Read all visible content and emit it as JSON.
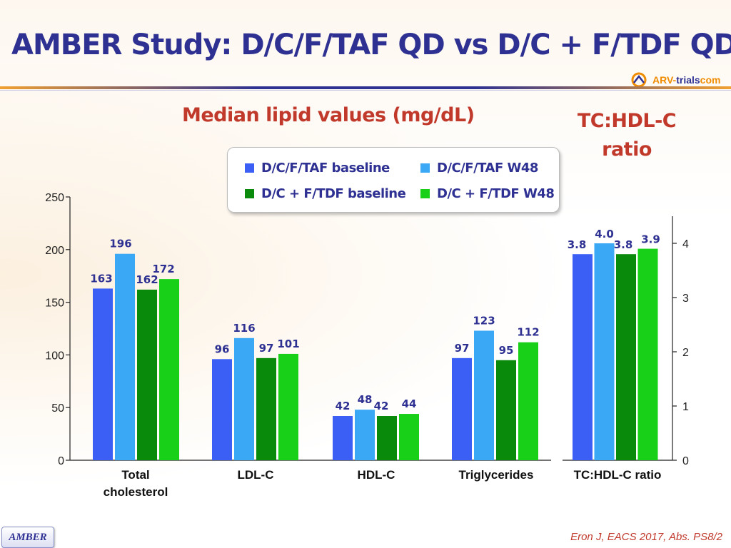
{
  "slide": {
    "title": "AMBER Study: D/C/F/TAF QD vs D/C + F/TDF QD",
    "logo_arv": "ARV-",
    "logo_trials": "trials",
    "logo_com": "com",
    "citation": "Eron J, EACS 2017, Abs. PS8/2",
    "badge": "AMBER"
  },
  "colors": {
    "dcftaf_baseline": "#3b5ef5",
    "dcftaf_w48": "#3ba8f5",
    "dcftdf_baseline": "#0a8a0a",
    "dcftdf_w48": "#18d018",
    "title": "#2e3192",
    "accent": "#c0392b"
  },
  "chart_data": [
    {
      "type": "bar",
      "title": "Median lipid values (mg/dL)",
      "categories": [
        "Total\ncholesterol",
        "LDL-C",
        "HDL-C",
        "Triglycerides"
      ],
      "series": [
        {
          "name": "D/C/F/TAF baseline",
          "values": [
            163,
            96,
            42,
            97
          ]
        },
        {
          "name": "D/C/F/TAF W48",
          "values": [
            196,
            116,
            48,
            123
          ]
        },
        {
          "name": "D/C + F/TDF baseline",
          "values": [
            162,
            97,
            42,
            95
          ]
        },
        {
          "name": "D/C + F/TDF W48",
          "values": [
            172,
            101,
            44,
            112
          ]
        }
      ],
      "value_labels": [
        [
          "163",
          "96",
          "42",
          "97"
        ],
        [
          "196",
          "116",
          "48",
          "123"
        ],
        [
          "162",
          "97",
          "42",
          "95"
        ],
        [
          "172",
          "101",
          "44",
          "112"
        ]
      ],
      "ylim": [
        0,
        250
      ],
      "yticks": [
        0,
        50,
        100,
        150,
        200,
        250
      ],
      "ytick_labels": [
        "0",
        "50",
        "100",
        "150",
        "200",
        "250"
      ],
      "xlabel": "",
      "ylabel": "",
      "legend": "top-center"
    },
    {
      "type": "bar",
      "title": "TC:HDL-C ratio",
      "categories": [
        "TC:HDL-C ratio"
      ],
      "series": [
        {
          "name": "D/C/F/TAF baseline",
          "values": [
            3.8
          ]
        },
        {
          "name": "D/C/F/TAF W48",
          "values": [
            4.0
          ]
        },
        {
          "name": "D/C + F/TDF baseline",
          "values": [
            3.8
          ]
        },
        {
          "name": "D/C + F/TDF W48",
          "values": [
            3.9
          ]
        }
      ],
      "value_labels": [
        [
          "3.8"
        ],
        [
          "4.0"
        ],
        [
          "3.8"
        ],
        [
          "3.9"
        ]
      ],
      "ylim": [
        0,
        4.5
      ],
      "yticks": [
        0,
        1,
        2,
        3,
        4
      ],
      "ytick_labels": [
        "0",
        "1",
        "2",
        "3",
        "4"
      ],
      "axis_side": "right"
    }
  ]
}
